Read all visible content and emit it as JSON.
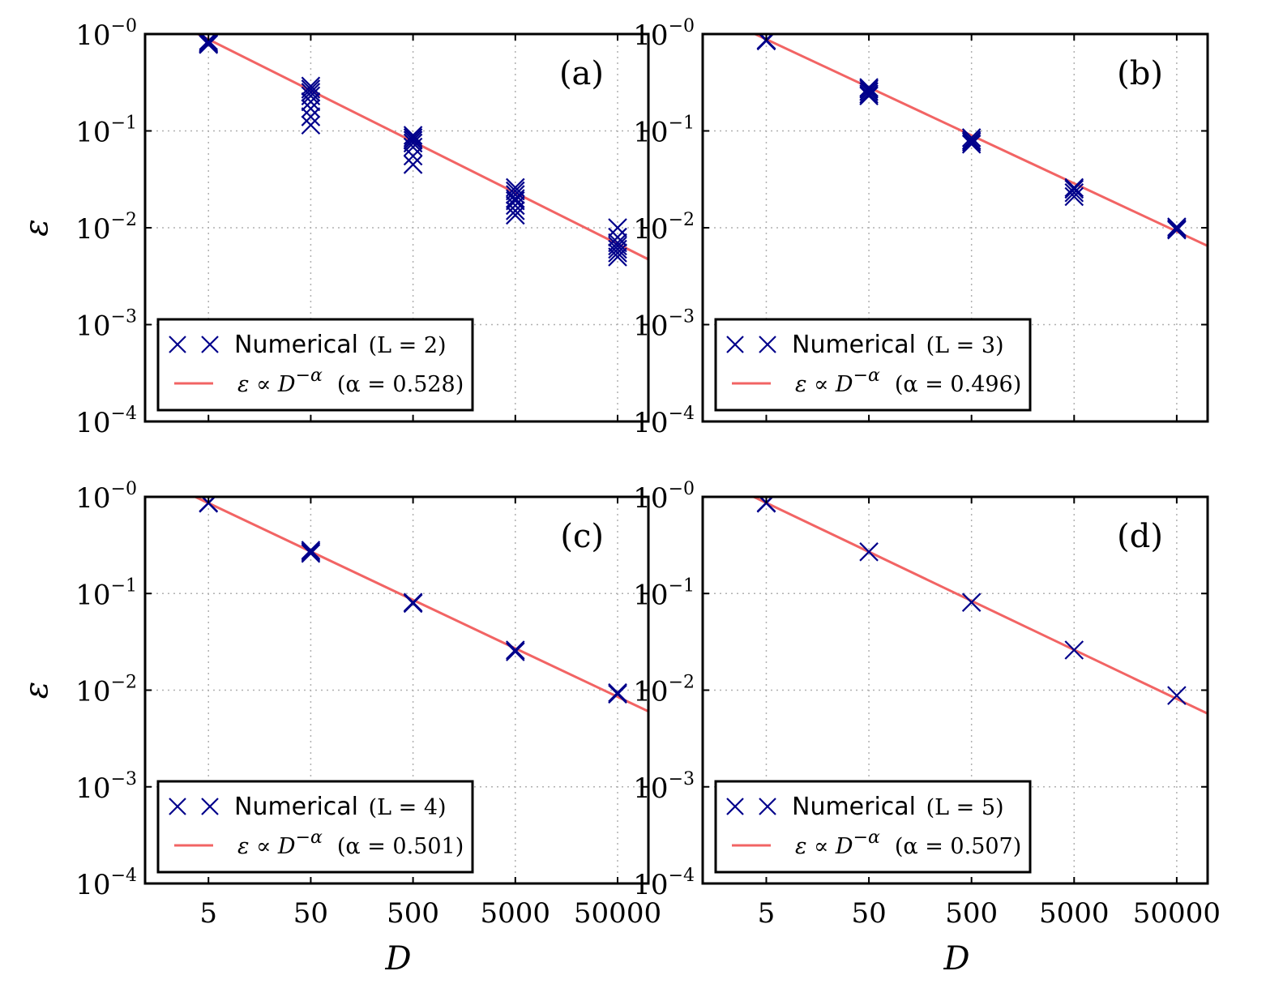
{
  "colors": {
    "marker": "#00008b",
    "fit": "#f26464",
    "grid": "#b0b0b0",
    "axes": "#000000"
  },
  "ytick_base": "10",
  "xlabel": "D",
  "ylabel": "ε",
  "chart_data": [
    {
      "type": "scatter",
      "panel_label": "(a)",
      "xscale": "log",
      "yscale": "log",
      "xticks": [
        5,
        50,
        500,
        5000,
        50000
      ],
      "xtick_labels": [
        "5",
        "50",
        "500",
        "5000",
        "50000"
      ],
      "yticks": [
        1,
        0.1,
        0.01,
        0.001,
        0.0001
      ],
      "ytick_exponents": [
        "−0",
        "−1",
        "−2",
        "−3",
        "−4"
      ],
      "xlabel": "",
      "ylabel": "ε",
      "legend_position": "lower-left",
      "series": [
        {
          "name": "Numerical",
          "legend_math": "(L = 2)",
          "x": [
            5,
            5,
            5,
            5,
            5,
            50,
            50,
            50,
            50,
            50,
            50,
            50,
            50,
            500,
            500,
            500,
            500,
            500,
            500,
            500,
            5000,
            5000,
            5000,
            5000,
            5000,
            5000,
            5000,
            5000,
            50000,
            50000,
            50000,
            50000,
            50000,
            50000,
            50000
          ],
          "y": [
            0.85,
            0.82,
            0.8,
            0.79,
            0.78,
            0.29,
            0.27,
            0.25,
            0.23,
            0.2,
            0.17,
            0.14,
            0.115,
            0.09,
            0.085,
            0.08,
            0.075,
            0.068,
            0.055,
            0.045,
            0.026,
            0.024,
            0.022,
            0.02,
            0.019,
            0.017,
            0.015,
            0.0135,
            0.01,
            0.008,
            0.007,
            0.0065,
            0.006,
            0.0055,
            0.005
          ]
        },
        {
          "name": "ε ∝ D^−α",
          "legend_math": "(α = 0.528)",
          "alpha": 0.528,
          "amplitude": 2.06
        }
      ]
    },
    {
      "type": "scatter",
      "panel_label": "(b)",
      "xscale": "log",
      "yscale": "log",
      "xticks": [
        5,
        50,
        500,
        5000,
        50000
      ],
      "xtick_labels": [
        "5",
        "50",
        "500",
        "5000",
        "50000"
      ],
      "yticks": [
        1,
        0.1,
        0.01,
        0.001,
        0.0001
      ],
      "ytick_exponents": [
        "−0",
        "−1",
        "−2",
        "−3",
        "−4"
      ],
      "xlabel": "D",
      "ylabel": "",
      "legend_position": "lower-left",
      "series": [
        {
          "name": "Numerical",
          "legend_math": "(L = 3)",
          "x": [
            5,
            5,
            5,
            50,
            50,
            50,
            50,
            50,
            500,
            500,
            500,
            500,
            5000,
            5000,
            5000,
            5000,
            50000,
            50000,
            50000
          ],
          "y": [
            0.87,
            0.86,
            0.85,
            0.28,
            0.27,
            0.255,
            0.24,
            0.23,
            0.085,
            0.08,
            0.077,
            0.073,
            0.026,
            0.025,
            0.023,
            0.021,
            0.0102,
            0.0098,
            0.0095
          ]
        },
        {
          "name": "ε ∝ D^−α",
          "legend_math": "(α = 0.496)",
          "alpha": 0.496,
          "amplitude": 1.96
        }
      ]
    },
    {
      "type": "scatter",
      "panel_label": "(c)",
      "xscale": "log",
      "yscale": "log",
      "xticks": [
        5,
        50,
        500,
        5000,
        50000
      ],
      "xtick_labels": [
        "5",
        "50",
        "500",
        "5000",
        "50000"
      ],
      "yticks": [
        1,
        0.1,
        0.01,
        0.001,
        0.0001
      ],
      "ytick_exponents": [
        "−0",
        "−1",
        "−2",
        "−3",
        "−4"
      ],
      "xlabel": "D",
      "ylabel": "ε",
      "legend_position": "lower-left",
      "series": [
        {
          "name": "Numerical",
          "legend_math": "(L = 4)",
          "x": [
            5,
            5,
            50,
            50,
            50,
            500,
            500,
            5000,
            5000,
            50000,
            50000
          ],
          "y": [
            0.87,
            0.86,
            0.28,
            0.27,
            0.26,
            0.081,
            0.079,
            0.026,
            0.025,
            0.0094,
            0.0091
          ]
        },
        {
          "name": "ε ∝ D^−α",
          "legend_math": "(α = 0.501)",
          "alpha": 0.501,
          "amplitude": 1.93
        }
      ]
    },
    {
      "type": "scatter",
      "panel_label": "(d)",
      "xscale": "log",
      "yscale": "log",
      "xticks": [
        5,
        50,
        500,
        5000,
        50000
      ],
      "xtick_labels": [
        "5",
        "50",
        "500",
        "5000",
        "50000"
      ],
      "yticks": [
        1,
        0.1,
        0.01,
        0.001,
        0.0001
      ],
      "ytick_exponents": [
        "−0",
        "−1",
        "−2",
        "−3",
        "−4"
      ],
      "xlabel": "D",
      "ylabel": "",
      "legend_position": "lower-left",
      "series": [
        {
          "name": "Numerical",
          "legend_math": "(L = 5)",
          "x": [
            5,
            5,
            50,
            500,
            5000,
            50000
          ],
          "y": [
            0.87,
            0.86,
            0.27,
            0.081,
            0.026,
            0.0088
          ]
        },
        {
          "name": "ε ∝ D^−α",
          "legend_math": "(α = 0.507)",
          "alpha": 0.507,
          "amplitude": 1.96
        }
      ]
    }
  ]
}
